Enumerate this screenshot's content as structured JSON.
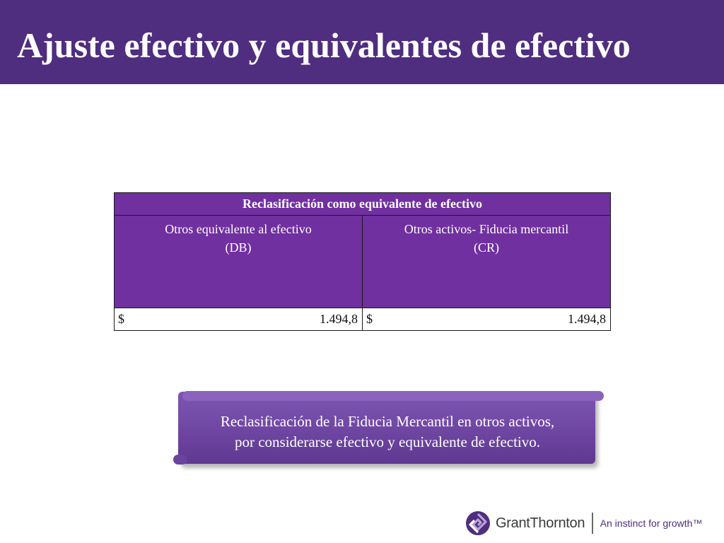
{
  "slide": {
    "title": "Ajuste efectivo y equivalentes de efectivo"
  },
  "table": {
    "header": "Reclasificación como equivalente de efectivo",
    "columns": [
      {
        "line1": "Otros equivalente al efectivo",
        "line2": "(DB)"
      },
      {
        "line1": "Otros activos- Fiducia mercantil",
        "line2": "(CR)"
      }
    ],
    "values": [
      {
        "currency": "$",
        "amount": "1.494,8"
      },
      {
        "currency": "$",
        "amount": "1.494,8"
      }
    ]
  },
  "callout": {
    "line1": "Reclasificación de la Fiducia Mercantil en otros activos,",
    "line2": "por considerarse efectivo y equivalente de efectivo."
  },
  "logo": {
    "name": "GrantThornton",
    "tagline": "An instinct for growth™",
    "logo_icon": "grant-thornton-mark"
  },
  "colors": {
    "title_bar": "#4f2d7f",
    "table_purple": "#7030a0",
    "callout_purple": "#6e46a2"
  }
}
